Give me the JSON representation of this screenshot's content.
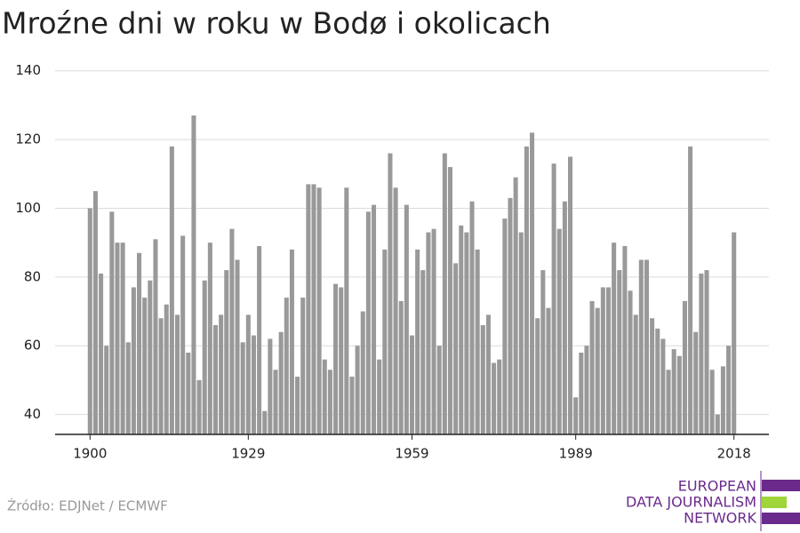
{
  "chart_data": {
    "type": "bar",
    "title": "Mroźne dni w roku w Bodø i okolicach",
    "x": [
      1900,
      1901,
      1902,
      1903,
      1904,
      1905,
      1906,
      1907,
      1908,
      1909,
      1910,
      1911,
      1912,
      1913,
      1914,
      1915,
      1916,
      1917,
      1918,
      1919,
      1920,
      1921,
      1922,
      1923,
      1924,
      1925,
      1926,
      1927,
      1928,
      1929,
      1930,
      1931,
      1932,
      1933,
      1934,
      1935,
      1936,
      1937,
      1938,
      1939,
      1940,
      1941,
      1942,
      1943,
      1944,
      1945,
      1946,
      1947,
      1948,
      1949,
      1950,
      1951,
      1952,
      1953,
      1954,
      1955,
      1956,
      1957,
      1958,
      1959,
      1960,
      1961,
      1962,
      1963,
      1964,
      1965,
      1966,
      1967,
      1968,
      1969,
      1970,
      1971,
      1972,
      1973,
      1974,
      1975,
      1976,
      1977,
      1978,
      1979,
      1980,
      1981,
      1982,
      1983,
      1984,
      1985,
      1986,
      1987,
      1988,
      1989,
      1990,
      1991,
      1992,
      1993,
      1994,
      1995,
      1996,
      1997,
      1998,
      1999,
      2000,
      2001,
      2002,
      2003,
      2004,
      2005,
      2006,
      2007,
      2008,
      2009,
      2010,
      2011,
      2012,
      2013,
      2014,
      2015,
      2016,
      2017,
      2018
    ],
    "values": [
      100,
      105,
      81,
      60,
      99,
      90,
      90,
      61,
      77,
      87,
      74,
      79,
      91,
      68,
      72,
      118,
      69,
      92,
      58,
      127,
      50,
      79,
      90,
      66,
      69,
      82,
      94,
      85,
      61,
      69,
      63,
      89,
      41,
      62,
      53,
      64,
      74,
      88,
      51,
      74,
      107,
      107,
      106,
      56,
      53,
      78,
      77,
      106,
      51,
      60,
      70,
      99,
      101,
      56,
      88,
      116,
      106,
      73,
      101,
      63,
      88,
      82,
      93,
      94,
      60,
      116,
      112,
      84,
      95,
      93,
      102,
      88,
      66,
      69,
      55,
      56,
      97,
      103,
      109,
      93,
      118,
      122,
      68,
      82,
      71,
      113,
      94,
      102,
      115,
      45,
      58,
      60,
      73,
      71,
      77,
      77,
      90,
      82,
      89,
      76,
      69,
      85,
      85,
      68,
      65,
      62,
      53,
      59,
      57,
      73,
      118,
      64,
      81,
      82,
      53,
      40,
      54,
      60,
      93
    ],
    "color": "#999999",
    "xlim": [
      1893.6,
      2024.4
    ],
    "xticks": [
      1900,
      1929,
      1959,
      1989,
      2018
    ],
    "ylim": [
      34.2,
      142
    ],
    "yticks": [
      40,
      60,
      80,
      100,
      120,
      140
    ],
    "grid": true,
    "source": "Źródło: EDJNet / ECMWF",
    "logo": [
      "EUROPEAN",
      "DATA JOURNALISM",
      "NETWORK"
    ]
  }
}
